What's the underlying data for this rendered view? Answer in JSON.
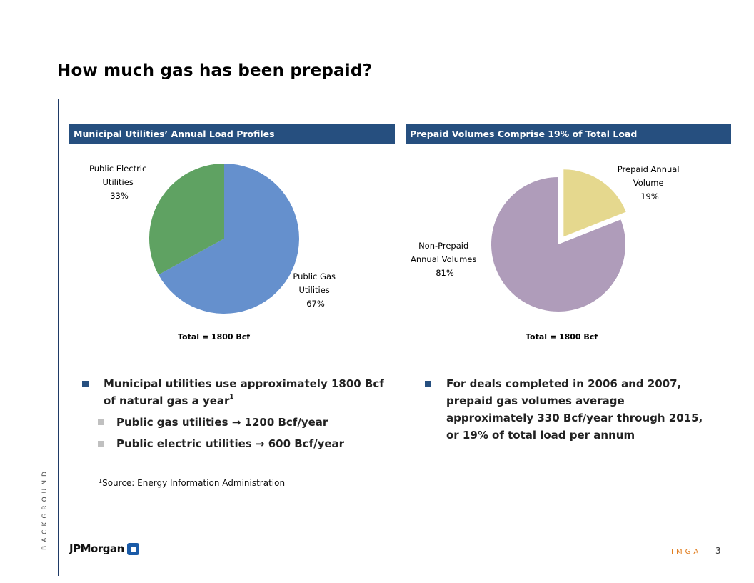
{
  "slide": {
    "title": "How much gas has been prepaid?",
    "side_label": "BACKGROUND",
    "page_number": "3",
    "imga_label": "IMGA",
    "logo_text": "JPMorgan"
  },
  "left_panel": {
    "header": "Municipal Utilities’ Annual Load Profiles",
    "total": "Total = 1800 Bcf",
    "label_electric": [
      "Public Electric",
      "Utilities",
      "33%"
    ],
    "label_gas": [
      "Public Gas",
      "Utilities",
      "67%"
    ]
  },
  "right_panel": {
    "header": "Prepaid Volumes Comprise 19% of Total Load",
    "total": "Total = 1800 Bcf",
    "label_prepaid": [
      "Prepaid Annual",
      "Volume",
      "19%"
    ],
    "label_nonprepaid": [
      "Non-Prepaid",
      "Annual Volumes",
      "81%"
    ]
  },
  "chart_data": [
    {
      "type": "pie",
      "title": "Municipal Utilities’ Annual Load Profiles",
      "slices": [
        {
          "label": "Public Gas Utilities",
          "value": 67,
          "color": "#6590cd"
        },
        {
          "label": "Public Electric Utilities",
          "value": 33,
          "color": "#5fa262"
        }
      ]
    },
    {
      "type": "pie",
      "title": "Prepaid Volumes Comprise 19% of Total Load",
      "slices": [
        {
          "label": "Prepaid Annual Volume",
          "value": 19,
          "color": "#e5d88e",
          "exploded": true
        },
        {
          "label": "Non-Prepaid Annual Volumes",
          "value": 81,
          "color": "#af9cba"
        }
      ]
    }
  ],
  "left_bullets": {
    "main_line1": "Municipal utilities use approximately 1800 Bcf",
    "main_line2": "of natural gas a year",
    "footnote_mark": "1",
    "sub1": "Public gas utilities  →  1200 Bcf/year",
    "sub2": "Public electric utilities  →  600 Bcf/year"
  },
  "right_bullets": {
    "line1": "For deals completed in 2006 and 2007,",
    "line2": "prepaid gas volumes average",
    "line3": "approximately 330 Bcf/year through 2015,",
    "line4": "or 19% of total load per annum"
  },
  "footnote": {
    "mark": "1",
    "text": "Source: Energy Information Administration"
  },
  "colors": {
    "header_bg": "#264f7f",
    "gas": "#6590cd",
    "electric": "#5fa262",
    "prepaid": "#e5d88e",
    "nonprepaid": "#af9cba",
    "imga": "#e07a1a"
  }
}
